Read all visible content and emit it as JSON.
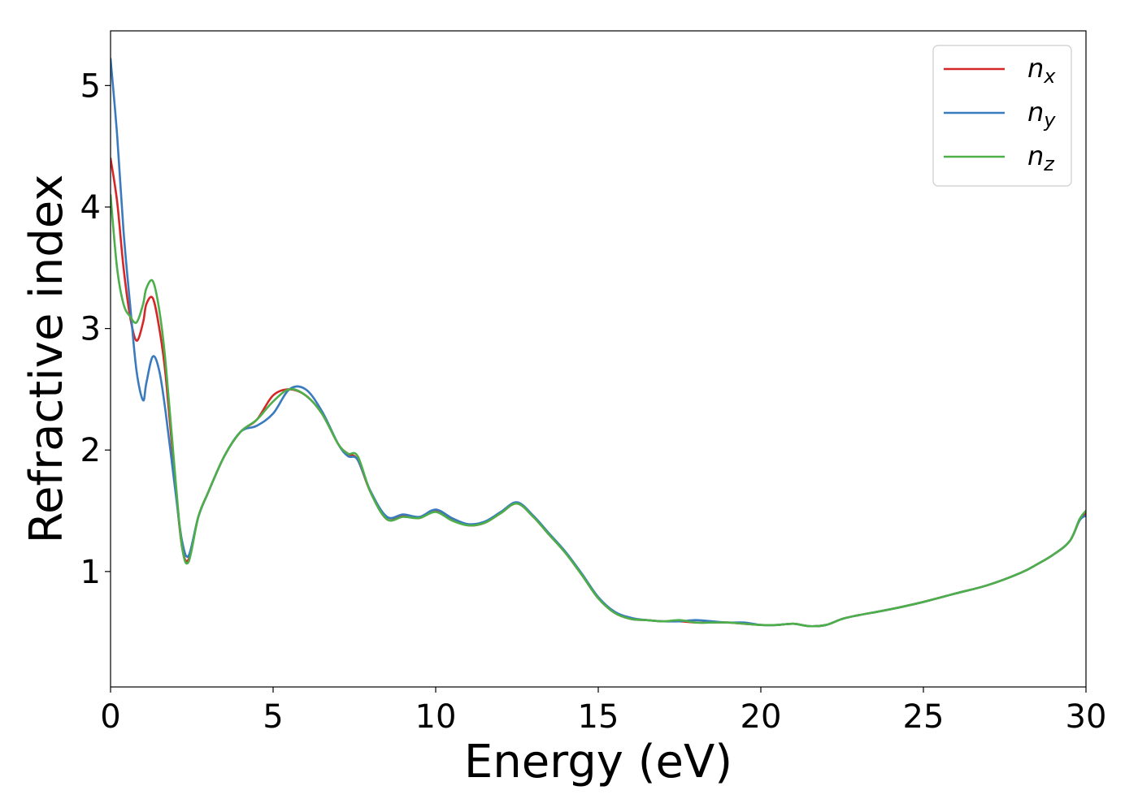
{
  "chart_data": {
    "type": "line",
    "xlabel": "Energy (eV)",
    "ylabel": "Refractive index",
    "xlim": [
      0,
      30
    ],
    "ylim": [
      0.05,
      5.45
    ],
    "xticks": [
      0,
      5,
      10,
      15,
      20,
      25,
      30
    ],
    "yticks": [
      1,
      2,
      3,
      4,
      5
    ],
    "grid": false,
    "legend": "top-right",
    "series": [
      {
        "name": "n_x",
        "label_base": "n",
        "label_sub": "x",
        "color": "#d62728",
        "x": [
          0,
          0.2,
          0.4,
          0.6,
          0.8,
          1.0,
          1.1,
          1.3,
          1.5,
          1.7,
          2.0,
          2.2,
          2.4,
          2.7,
          3.0,
          3.5,
          4.0,
          4.5,
          5.0,
          5.5,
          6.0,
          6.5,
          7.0,
          7.3,
          7.6,
          8.0,
          8.5,
          9.0,
          9.5,
          10.0,
          10.5,
          11.0,
          11.5,
          12.0,
          12.5,
          13.0,
          13.5,
          14.0,
          14.5,
          15.0,
          15.5,
          16.0,
          16.5,
          17.0,
          17.5,
          18.0,
          18.5,
          19.0,
          19.5,
          20.0,
          20.5,
          21.0,
          21.5,
          22.0,
          22.5,
          23.0,
          24.0,
          25.0,
          26.0,
          27.0,
          28.0,
          28.5,
          29.0,
          29.5,
          29.8,
          30.0
        ],
        "y": [
          4.4,
          4.05,
          3.5,
          3.1,
          2.9,
          3.05,
          3.2,
          3.25,
          3.0,
          2.6,
          1.7,
          1.2,
          1.1,
          1.45,
          1.65,
          1.95,
          2.15,
          2.25,
          2.45,
          2.5,
          2.45,
          2.3,
          2.05,
          1.97,
          1.92,
          1.65,
          1.43,
          1.46,
          1.44,
          1.5,
          1.43,
          1.38,
          1.4,
          1.48,
          1.56,
          1.45,
          1.3,
          1.15,
          0.97,
          0.78,
          0.66,
          0.61,
          0.6,
          0.59,
          0.59,
          0.58,
          0.58,
          0.58,
          0.57,
          0.56,
          0.56,
          0.57,
          0.55,
          0.56,
          0.61,
          0.64,
          0.69,
          0.75,
          0.82,
          0.89,
          0.99,
          1.06,
          1.14,
          1.25,
          1.42,
          1.48
        ]
      },
      {
        "name": "n_y",
        "label_base": "n",
        "label_sub": "y",
        "color": "#3a7bbf",
        "x": [
          0,
          0.2,
          0.4,
          0.6,
          0.8,
          1.0,
          1.1,
          1.3,
          1.5,
          1.7,
          2.0,
          2.2,
          2.4,
          2.7,
          3.0,
          3.5,
          4.0,
          4.5,
          5.0,
          5.5,
          6.0,
          6.5,
          7.0,
          7.3,
          7.6,
          8.0,
          8.5,
          9.0,
          9.5,
          10.0,
          10.5,
          11.0,
          11.5,
          12.0,
          12.5,
          13.0,
          13.5,
          14.0,
          14.5,
          15.0,
          15.5,
          16.0,
          16.5,
          17.0,
          17.5,
          18.0,
          18.5,
          19.0,
          19.5,
          20.0,
          20.5,
          21.0,
          21.5,
          22.0,
          22.5,
          23.0,
          24.0,
          25.0,
          26.0,
          27.0,
          28.0,
          28.5,
          29.0,
          29.5,
          29.8,
          30.0
        ],
        "y": [
          5.22,
          4.6,
          3.8,
          3.2,
          2.65,
          2.41,
          2.55,
          2.77,
          2.65,
          2.3,
          1.65,
          1.25,
          1.13,
          1.45,
          1.65,
          1.95,
          2.15,
          2.2,
          2.3,
          2.5,
          2.5,
          2.32,
          2.05,
          1.95,
          1.92,
          1.66,
          1.45,
          1.47,
          1.45,
          1.51,
          1.44,
          1.39,
          1.41,
          1.49,
          1.57,
          1.46,
          1.31,
          1.16,
          0.98,
          0.79,
          0.67,
          0.62,
          0.6,
          0.59,
          0.59,
          0.6,
          0.59,
          0.58,
          0.58,
          0.56,
          0.56,
          0.57,
          0.55,
          0.56,
          0.61,
          0.64,
          0.69,
          0.75,
          0.82,
          0.89,
          0.99,
          1.06,
          1.14,
          1.25,
          1.42,
          1.46
        ]
      },
      {
        "name": "n_z",
        "label_base": "n",
        "label_sub": "z",
        "color": "#4daf4a",
        "x": [
          0,
          0.2,
          0.4,
          0.6,
          0.8,
          1.0,
          1.1,
          1.3,
          1.5,
          1.7,
          2.0,
          2.2,
          2.4,
          2.7,
          3.0,
          3.5,
          4.0,
          4.5,
          5.0,
          5.5,
          6.0,
          6.5,
          7.0,
          7.3,
          7.6,
          8.0,
          8.5,
          9.0,
          9.5,
          10.0,
          10.5,
          11.0,
          11.5,
          12.0,
          12.5,
          13.0,
          13.5,
          14.0,
          14.5,
          15.0,
          15.5,
          16.0,
          16.5,
          17.0,
          17.5,
          18.0,
          18.5,
          19.0,
          19.5,
          20.0,
          20.5,
          21.0,
          21.5,
          22.0,
          22.5,
          23.0,
          24.0,
          25.0,
          26.0,
          27.0,
          28.0,
          28.5,
          29.0,
          29.5,
          29.8,
          30.0
        ],
        "y": [
          4.1,
          3.5,
          3.2,
          3.1,
          3.05,
          3.2,
          3.33,
          3.39,
          3.15,
          2.7,
          1.75,
          1.2,
          1.08,
          1.45,
          1.65,
          1.95,
          2.15,
          2.25,
          2.4,
          2.5,
          2.45,
          2.3,
          2.05,
          1.97,
          1.95,
          1.65,
          1.43,
          1.45,
          1.44,
          1.49,
          1.42,
          1.38,
          1.4,
          1.48,
          1.56,
          1.45,
          1.3,
          1.15,
          0.97,
          0.78,
          0.66,
          0.61,
          0.6,
          0.59,
          0.6,
          0.58,
          0.58,
          0.58,
          0.57,
          0.56,
          0.56,
          0.57,
          0.55,
          0.56,
          0.61,
          0.64,
          0.69,
          0.75,
          0.82,
          0.89,
          0.99,
          1.06,
          1.14,
          1.25,
          1.43,
          1.5
        ]
      }
    ]
  }
}
